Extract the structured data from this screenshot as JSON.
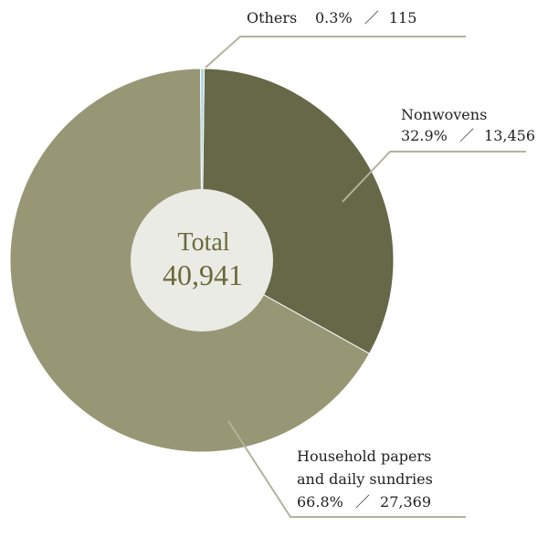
{
  "chart_data": {
    "type": "pie",
    "variant": "donut",
    "center_label": "Total",
    "center_value": "40,941",
    "slices": [
      {
        "name": "Nonwovens",
        "name_lines": [
          "Nonwovens"
        ],
        "percent": 32.9,
        "percent_text": "32.9%",
        "value": 13456,
        "value_text": "13,456",
        "color": "#666848"
      },
      {
        "name": "Household papers and daily sundries",
        "name_lines": [
          "Household papers",
          "and daily sundries"
        ],
        "percent": 66.8,
        "percent_text": "66.8%",
        "value": 27369,
        "value_text": "27,369",
        "color": "#979775"
      },
      {
        "name": "Others",
        "name_lines": [
          "Others"
        ],
        "percent": 0.3,
        "percent_text": "0.3%",
        "value": 115,
        "value_text": "115",
        "color": "#a9d6e2"
      }
    ],
    "separator": "／",
    "colors": {
      "center_fill": "#ebebe6",
      "center_text": "#6b6a3a",
      "leader_line": "#b3b39c"
    }
  }
}
